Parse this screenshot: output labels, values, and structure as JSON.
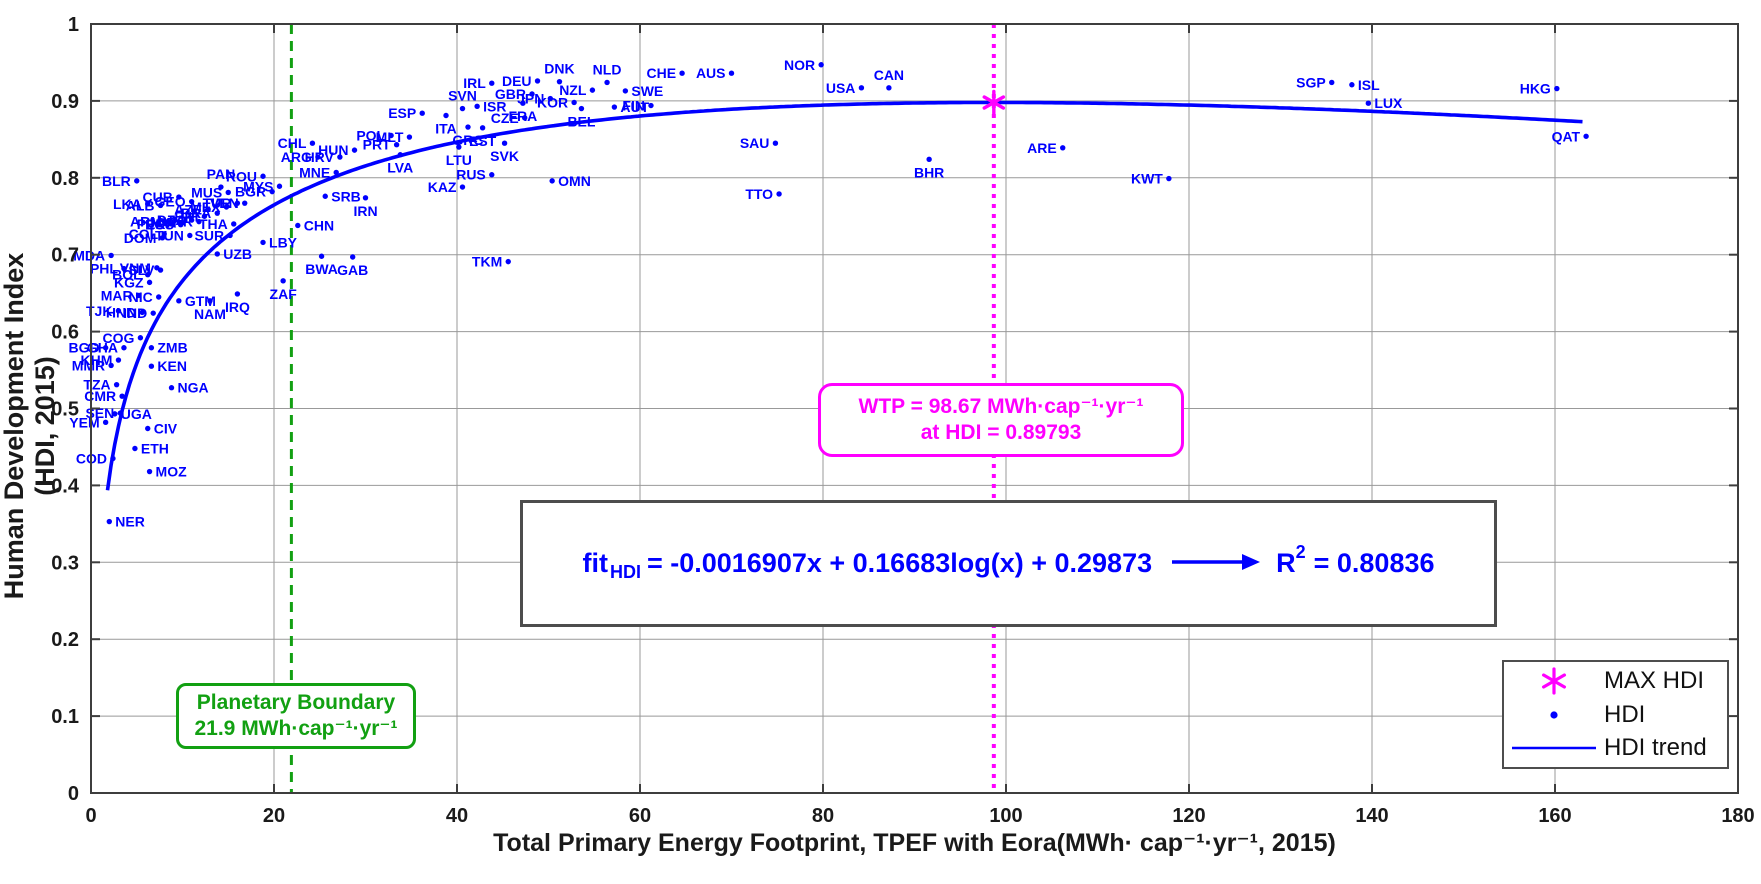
{
  "chart_data": {
    "type": "scatter",
    "title": "",
    "xlabel": "Total Primary Energy Footprint, TPEF with Eora(MWh· cap⁻¹·yr⁻¹, 2015)",
    "ylabel": "Human Development Index (HDI, 2015)",
    "xlim": [
      0,
      180
    ],
    "ylim": [
      0,
      1
    ],
    "xticks": [
      0,
      20,
      40,
      60,
      80,
      100,
      120,
      140,
      160,
      180
    ],
    "yticks": [
      0,
      0.1,
      0.2,
      0.3,
      0.4,
      0.5,
      0.6,
      0.7,
      0.8,
      0.9,
      1
    ],
    "ytick_labels": [
      "0",
      "0.1",
      "0.2",
      "0.3",
      "0.4",
      "0.5",
      "0.6",
      "0.7",
      "0.8",
      "0.9",
      "1"
    ],
    "grid": true,
    "colors": {
      "points": "#0000ff",
      "trend": "#0000ff",
      "max_hdi": "#ff00ff",
      "boundary": "#12a012",
      "grid": "#999999",
      "axis": "#3d3d3d",
      "labels": "#0000ff"
    },
    "trend": {
      "name": "HDI trend",
      "formula": "fit_HDI = -0.0016907x + 0.16683log(x) + 0.29873",
      "a": -0.0016907,
      "b": 0.16683,
      "c": 0.29873,
      "x_start": 1.8,
      "x_end": 163.4,
      "r_squared": 0.80836
    },
    "max_hdi_point": {
      "name": "MAX HDI",
      "x": 98.67,
      "y": 0.89793
    },
    "vlines": [
      {
        "name": "planetary-boundary-line",
        "x": 21.9,
        "style": "dashed",
        "color": "#12a012"
      },
      {
        "name": "wtp-line",
        "x": 98.67,
        "style": "dotted",
        "color": "#ff00ff"
      }
    ],
    "points": [
      [
        "NER",
        2.0,
        0.353,
        "r"
      ],
      [
        "COD",
        2.4,
        0.435,
        "l"
      ],
      [
        "MOZ",
        6.4,
        0.418,
        "r"
      ],
      [
        "ETH",
        4.8,
        0.448,
        "r"
      ],
      [
        "CIV",
        6.2,
        0.474,
        "r"
      ],
      [
        "YEM",
        1.6,
        0.482,
        "l"
      ],
      [
        "SEN",
        3.2,
        0.494,
        "l"
      ],
      [
        "UGA",
        2.6,
        0.493,
        "r"
      ],
      [
        "CMR",
        3.4,
        0.516,
        "l"
      ],
      [
        "TZA",
        2.8,
        0.531,
        "l"
      ],
      [
        "NGA",
        8.8,
        0.527,
        "r"
      ],
      [
        "KEN",
        6.6,
        0.555,
        "r"
      ],
      [
        "ZMB",
        6.6,
        0.579,
        "r"
      ],
      [
        "COG",
        5.4,
        0.592,
        "l"
      ],
      [
        "BGD",
        1.6,
        0.579,
        "l"
      ],
      [
        "GHA",
        3.6,
        0.579,
        "l"
      ],
      [
        "MMR",
        2.2,
        0.556,
        "l"
      ],
      [
        "KHM",
        3.0,
        0.563,
        "l"
      ],
      [
        "MDA",
        2.2,
        0.699,
        "l"
      ],
      [
        "PHL",
        3.6,
        0.682,
        "l"
      ],
      [
        "VNM",
        7.2,
        0.683,
        "l"
      ],
      [
        "BOL",
        6.2,
        0.674,
        "l"
      ],
      [
        "SLV",
        7.6,
        0.68,
        "l"
      ],
      [
        "HND",
        5.6,
        0.625,
        "l"
      ],
      [
        "TJK",
        3.0,
        0.627,
        "l"
      ],
      [
        "IND",
        6.8,
        0.624,
        "l"
      ],
      [
        "KGZ",
        6.4,
        0.664,
        "l"
      ],
      [
        "MAR",
        5.2,
        0.647,
        "l"
      ],
      [
        "NIC",
        7.4,
        0.645,
        "l"
      ],
      [
        "GTM",
        9.6,
        0.64,
        "r"
      ],
      [
        "NAM",
        13.0,
        0.64,
        "b"
      ],
      [
        "IRQ",
        16.0,
        0.649,
        "b"
      ],
      [
        "UZB",
        13.8,
        0.701,
        "r"
      ],
      [
        "ZAF",
        21.0,
        0.666,
        "b"
      ],
      [
        "LBY",
        18.8,
        0.716,
        "r"
      ],
      [
        "BWA",
        25.2,
        0.698,
        "b"
      ],
      [
        "CHN",
        22.6,
        0.738,
        "r"
      ],
      [
        "GAB",
        28.6,
        0.697,
        "b"
      ],
      [
        "DZA",
        11.0,
        0.745,
        "l"
      ],
      [
        "DOM",
        7.8,
        0.722,
        "l"
      ],
      [
        "PER",
        8.8,
        0.74,
        "l"
      ],
      [
        "ECU",
        9.8,
        0.739,
        "l"
      ],
      [
        "COL",
        8.0,
        0.727,
        "l"
      ],
      [
        "BRA",
        13.8,
        0.754,
        "l"
      ],
      [
        "THA",
        15.6,
        0.74,
        "l"
      ],
      [
        "TUR",
        16.0,
        0.767,
        "l"
      ],
      [
        "MEX",
        14.8,
        0.762,
        "l"
      ],
      [
        "UKR",
        11.8,
        0.743,
        "l"
      ],
      [
        "TUN",
        10.8,
        0.725,
        "l"
      ],
      [
        "JOR",
        10.0,
        0.742,
        "l"
      ],
      [
        "ARM",
        8.4,
        0.743,
        "l"
      ],
      [
        "AZE",
        12.8,
        0.759,
        "l"
      ],
      [
        "GEO",
        11.0,
        0.769,
        "l"
      ],
      [
        "CUB",
        9.6,
        0.775,
        "l"
      ],
      [
        "ALB",
        7.6,
        0.764,
        "l"
      ],
      [
        "LKA",
        6.2,
        0.766,
        "l"
      ],
      [
        "BLR",
        5.0,
        0.796,
        "l"
      ],
      [
        "PAN",
        14.2,
        0.788,
        "a"
      ],
      [
        "ROU",
        18.8,
        0.802,
        "l"
      ],
      [
        "BGR",
        19.8,
        0.782,
        "l"
      ],
      [
        "MUS",
        15.0,
        0.781,
        "l"
      ],
      [
        "MYS",
        20.6,
        0.789,
        "l"
      ],
      [
        "VEN",
        16.8,
        0.767,
        "l"
      ],
      [
        "SUR",
        15.2,
        0.725,
        "l"
      ],
      [
        "BIH",
        12.4,
        0.75,
        "l"
      ],
      [
        "SRB",
        25.6,
        0.776,
        "r"
      ],
      [
        "MNE",
        26.8,
        0.807,
        "l"
      ],
      [
        "IRN",
        30.0,
        0.774,
        "b"
      ],
      [
        "KAZ",
        40.6,
        0.788,
        "l"
      ],
      [
        "RUS",
        43.8,
        0.804,
        "l"
      ],
      [
        "OMN",
        50.4,
        0.796,
        "r"
      ],
      [
        "TKM",
        45.6,
        0.691,
        "l"
      ],
      [
        "ARG",
        24.8,
        0.827,
        "l"
      ],
      [
        "CHL",
        24.2,
        0.845,
        "l"
      ],
      [
        "HRV",
        27.2,
        0.827,
        "l"
      ],
      [
        "HUN",
        28.8,
        0.836,
        "l"
      ],
      [
        "POL",
        32.8,
        0.855,
        "l"
      ],
      [
        "MLT",
        34.8,
        0.853,
        "l"
      ],
      [
        "PRT",
        33.4,
        0.843,
        "l"
      ],
      [
        "LVA",
        33.8,
        0.83,
        "b"
      ],
      [
        "LTU",
        40.2,
        0.84,
        "b"
      ],
      [
        "EST",
        42.8,
        0.865,
        "b"
      ],
      [
        "SVK",
        45.2,
        0.845,
        "b"
      ],
      [
        "GRC",
        41.2,
        0.866,
        "b"
      ],
      [
        "CZE",
        47.4,
        0.878,
        "l"
      ],
      [
        "ESP",
        36.2,
        0.884,
        "l"
      ],
      [
        "ITA",
        38.8,
        0.881,
        "b"
      ],
      [
        "SVN",
        40.6,
        0.89,
        "a"
      ],
      [
        "ISR",
        42.2,
        0.893,
        "r"
      ],
      [
        "IRL",
        43.8,
        0.923,
        "l"
      ],
      [
        "DEU",
        48.8,
        0.926,
        "l"
      ],
      [
        "GBR",
        48.2,
        0.909,
        "l"
      ],
      [
        "JPN",
        50.2,
        0.903,
        "l"
      ],
      [
        "KOR",
        52.8,
        0.898,
        "l"
      ],
      [
        "FRA",
        47.2,
        0.897,
        "b"
      ],
      [
        "DNK",
        51.2,
        0.925,
        "a"
      ],
      [
        "NLD",
        56.4,
        0.924,
        "a"
      ],
      [
        "NZL",
        54.8,
        0.914,
        "l"
      ],
      [
        "SWE",
        58.4,
        0.913,
        "r"
      ],
      [
        "BEL",
        53.6,
        0.89,
        "b"
      ],
      [
        "AUT",
        57.2,
        0.892,
        "r"
      ],
      [
        "FIN",
        61.2,
        0.894,
        "l"
      ],
      [
        "CHE",
        64.6,
        0.936,
        "l"
      ],
      [
        "AUS",
        70.0,
        0.936,
        "l"
      ],
      [
        "NOR",
        79.8,
        0.947,
        "l"
      ],
      [
        "USA",
        84.2,
        0.917,
        "l"
      ],
      [
        "CAN",
        87.2,
        0.917,
        "a"
      ],
      [
        "SAU",
        74.8,
        0.845,
        "l"
      ],
      [
        "TTO",
        75.2,
        0.779,
        "l"
      ],
      [
        "BHR",
        91.6,
        0.824,
        "b"
      ],
      [
        "ARE",
        106.2,
        0.839,
        "l"
      ],
      [
        "KWT",
        117.8,
        0.799,
        "l"
      ],
      [
        "SGP",
        135.6,
        0.924,
        "l"
      ],
      [
        "ISL",
        137.8,
        0.921,
        "r"
      ],
      [
        "LUX",
        139.6,
        0.897,
        "r"
      ],
      [
        "HKG",
        160.2,
        0.916,
        "l"
      ],
      [
        "QAT",
        163.4,
        0.854,
        "l"
      ]
    ]
  },
  "annotations": {
    "wtp_box": {
      "line1": "WTP = 98.67 MWh·cap⁻¹·yr⁻¹",
      "line2": "at HDI = 0.89793"
    },
    "fit_box": {
      "fit_base": "fit",
      "fit_sub": "HDI",
      "equation": "= -0.0016907x + 0.16683log(x) + 0.29873",
      "r2_base": "R",
      "r2_sup": "2",
      "r2_value": "= 0.80836"
    },
    "boundary_box": {
      "line1": "Planetary Boundary",
      "line2": "21.9 MWh·cap⁻¹·yr⁻¹"
    }
  },
  "legend": {
    "items": [
      {
        "marker": "asterisk",
        "color": "#ff00ff",
        "label": "MAX HDI"
      },
      {
        "marker": "dot",
        "color": "#0000ff",
        "label": "HDI"
      },
      {
        "marker": "line",
        "color": "#0000ff",
        "label": "HDI trend"
      }
    ]
  }
}
